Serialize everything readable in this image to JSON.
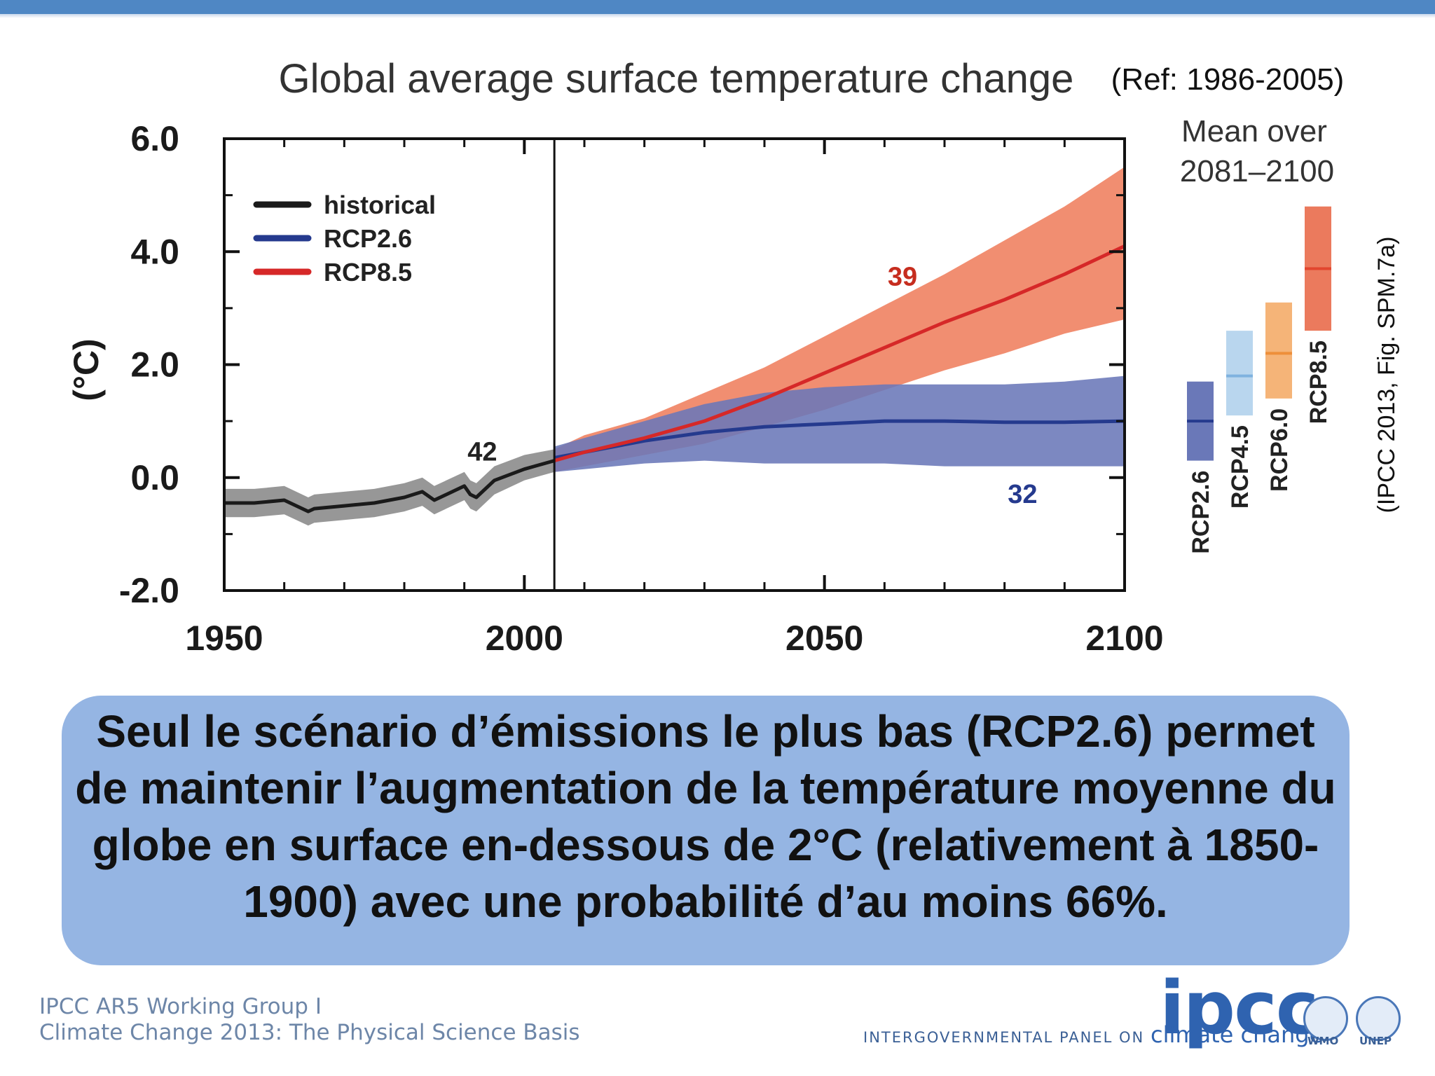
{
  "slide": {
    "caption": "Seul le scénario d’émissions le plus bas (RCP2.6) permet de maintenir l’augmentation de la température moyenne du globe en surface en-dessous de 2°C (relativement à 1850-1900) avec une probabilité d’au moins 66%.",
    "ref_note": "(Ref: 1986-2005)",
    "source_note": "(IPCC 2013, Fig. SPM.7a)",
    "footer_line1": "IPCC AR5 Working Group I",
    "footer_line2": "Climate Change 2013:  The Physical Science Basis",
    "ipcc_logo_text": "ipcc",
    "ipcc_subtitle": "INTERGOVERNMENTAL PANEL ON",
    "ipcc_subtitle_emph": "climate change",
    "wmo_label": "WMO",
    "unep_label": "UNEP"
  },
  "colors": {
    "historical": "#1a1a1a",
    "historical_band": "#8c8c8c",
    "rcp26": "#253a8e",
    "rcp26_band": "#6a78b8",
    "rcp85": "#d62828",
    "rcp85_band": "#ee7a58",
    "rcp45": "#7fb2df",
    "rcp45_band": "#b9d6ee",
    "rcp60": "#ee8f3a",
    "rcp60_band": "#f5b478",
    "rcp85_bar": "#e2452e",
    "rcp85_bar_band": "#eb7a5d",
    "caption_box": "#95b5e3",
    "top_bar": "#4f87c4"
  },
  "chart_data": {
    "type": "line",
    "title": "Global average surface temperature change",
    "xlabel": "",
    "ylabel": "(°C)",
    "xlim": [
      1950,
      2100
    ],
    "ylim": [
      -2.0,
      6.0
    ],
    "x_ticks": [
      "1950",
      "2000",
      "2050",
      "2100"
    ],
    "y_ticks": [
      "6.0",
      "4.0",
      "2.0",
      "0.0",
      "-2.0"
    ],
    "divider_year": 2005,
    "legend": [
      "historical",
      "RCP2.6",
      "RCP8.5"
    ],
    "legend_position": "top-left",
    "series": [
      {
        "name": "historical",
        "x": [
          1950,
          1955,
          1960,
          1964,
          1965,
          1970,
          1975,
          1980,
          1983,
          1985,
          1990,
          1991,
          1992,
          1995,
          2000,
          2005
        ],
        "y": [
          -0.45,
          -0.45,
          -0.4,
          -0.6,
          -0.55,
          -0.5,
          -0.45,
          -0.35,
          -0.25,
          -0.4,
          -0.15,
          -0.3,
          -0.35,
          -0.05,
          0.15,
          0.3
        ],
        "lower": [
          -0.7,
          -0.7,
          -0.65,
          -0.85,
          -0.8,
          -0.75,
          -0.7,
          -0.6,
          -0.5,
          -0.65,
          -0.4,
          -0.55,
          -0.6,
          -0.3,
          -0.05,
          0.1
        ],
        "upper": [
          -0.2,
          -0.2,
          -0.15,
          -0.35,
          -0.3,
          -0.25,
          -0.2,
          -0.1,
          0.0,
          -0.15,
          0.1,
          -0.05,
          -0.1,
          0.2,
          0.4,
          0.5
        ],
        "count": "42"
      },
      {
        "name": "RCP2.6",
        "x": [
          2005,
          2010,
          2020,
          2030,
          2040,
          2050,
          2060,
          2070,
          2080,
          2090,
          2100
        ],
        "y": [
          0.35,
          0.45,
          0.65,
          0.8,
          0.9,
          0.95,
          1.0,
          1.0,
          0.98,
          0.98,
          1.0
        ],
        "lower": [
          0.1,
          0.15,
          0.25,
          0.3,
          0.25,
          0.25,
          0.25,
          0.2,
          0.2,
          0.2,
          0.2
        ],
        "upper": [
          0.55,
          0.7,
          1.0,
          1.3,
          1.5,
          1.6,
          1.65,
          1.65,
          1.65,
          1.7,
          1.8
        ],
        "count": "32"
      },
      {
        "name": "RCP8.5",
        "x": [
          2005,
          2010,
          2020,
          2030,
          2040,
          2050,
          2060,
          2070,
          2080,
          2090,
          2100
        ],
        "y": [
          0.3,
          0.45,
          0.7,
          1.0,
          1.4,
          1.85,
          2.3,
          2.75,
          3.15,
          3.6,
          4.1
        ],
        "lower": [
          0.1,
          0.2,
          0.4,
          0.6,
          0.9,
          1.2,
          1.55,
          1.9,
          2.2,
          2.55,
          2.8
        ],
        "upper": [
          0.5,
          0.75,
          1.05,
          1.5,
          1.95,
          2.5,
          3.05,
          3.6,
          4.2,
          4.8,
          5.5
        ],
        "count": "39"
      }
    ],
    "mean_bars": {
      "title_line1": "Mean over",
      "title_line2": "2081–2100",
      "items": [
        {
          "name": "RCP2.6",
          "mean": 1.0,
          "low": 0.3,
          "high": 1.7
        },
        {
          "name": "RCP4.5",
          "mean": 1.8,
          "low": 1.1,
          "high": 2.6
        },
        {
          "name": "RCP6.0",
          "mean": 2.2,
          "low": 1.4,
          "high": 3.1
        },
        {
          "name": "RCP8.5",
          "mean": 3.7,
          "low": 2.6,
          "high": 4.8
        }
      ]
    }
  }
}
